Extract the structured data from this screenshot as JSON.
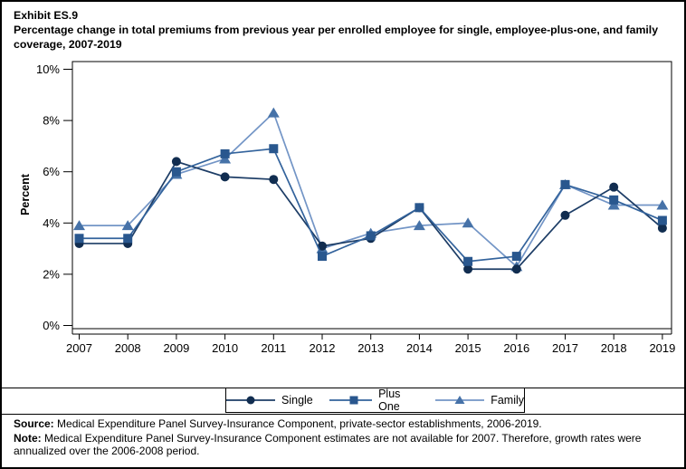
{
  "header": {
    "exhibit": "Exhibit ES.9",
    "title": "Percentage change in total premiums from previous year per enrolled employee for single, employee-plus-one, and family coverage,  2007-2019"
  },
  "chart_data": {
    "type": "line",
    "title": "Percentage change in total premiums from previous year per enrolled employee for single, employee-plus-one, and family coverage, 2007-2019",
    "xlabel": "",
    "ylabel": "Percent",
    "ylim": [
      0,
      10
    ],
    "yticks": [
      0,
      2,
      4,
      6,
      8,
      10
    ],
    "ytick_suffix": "%",
    "grid": false,
    "legend_position": "bottom",
    "categories": [
      2007,
      2008,
      2009,
      2010,
      2011,
      2012,
      2013,
      2014,
      2015,
      2016,
      2017,
      2018,
      2019
    ],
    "series": [
      {
        "name": "Single",
        "marker": "circle",
        "line_color": "#1d3d66",
        "marker_color": "#112d50",
        "z_order": 1,
        "values": [
          3.2,
          3.2,
          6.4,
          5.8,
          5.7,
          3.1,
          3.4,
          4.6,
          2.2,
          2.2,
          4.3,
          5.4,
          3.8
        ]
      },
      {
        "name": "Plus One",
        "marker": "square",
        "line_color": "#33639c",
        "marker_color": "#29578e",
        "z_order": 2,
        "values": [
          3.4,
          3.4,
          6.0,
          6.7,
          6.9,
          2.7,
          3.5,
          4.6,
          2.5,
          2.7,
          5.5,
          4.9,
          4.1
        ]
      },
      {
        "name": "Family",
        "marker": "triangle",
        "line_color": "#7395c6",
        "marker_color": "#4672a8",
        "z_order": 0,
        "values": [
          3.9,
          3.9,
          5.9,
          6.5,
          8.3,
          3.0,
          3.6,
          3.9,
          4.0,
          2.3,
          5.5,
          4.7,
          4.7
        ]
      }
    ]
  },
  "footer": {
    "source_label": "Source:",
    "source_text": " Medical Expenditure Panel Survey-Insurance Component, private-sector establishments, 2006-2019.",
    "note_label": "Note:",
    "note_text": " Medical Expenditure Panel Survey-Insurance Component estimates are not available for 2007. Therefore, growth rates were annualized over the 2006-2008 period."
  }
}
